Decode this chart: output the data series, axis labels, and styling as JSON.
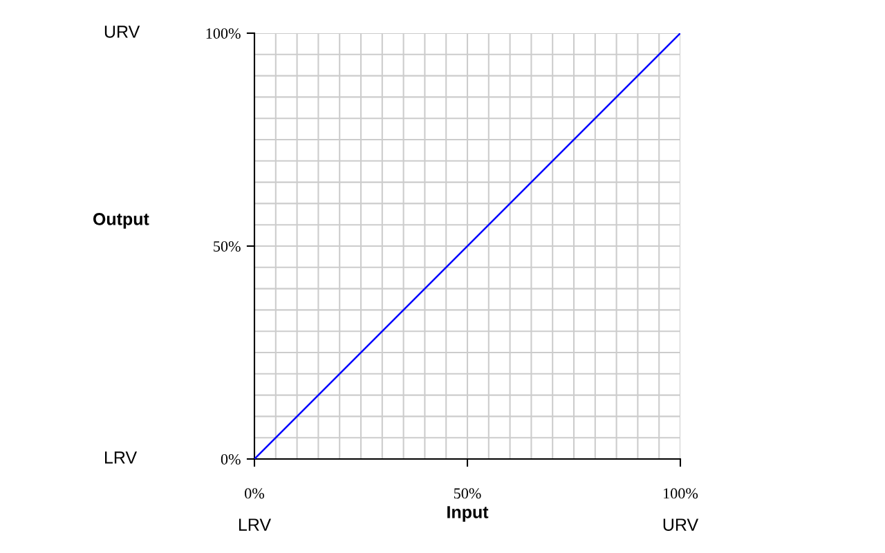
{
  "chart_data": {
    "type": "line",
    "xlabel": "Input",
    "ylabel": "Output",
    "x": [
      0,
      100
    ],
    "series": [
      {
        "color": "#0000ff",
        "values": [
          0,
          100
        ]
      }
    ],
    "xlim": [
      0,
      100
    ],
    "ylim": [
      0,
      100
    ],
    "xticks": [
      {
        "value": 0,
        "label": "0%"
      },
      {
        "value": 5,
        "label": null
      },
      {
        "value": 10,
        "label": null
      },
      {
        "value": 15,
        "label": null
      },
      {
        "value": 20,
        "label": null
      },
      {
        "value": 25,
        "label": null
      },
      {
        "value": 30,
        "label": null
      },
      {
        "value": 35,
        "label": null
      },
      {
        "value": 40,
        "label": null
      },
      {
        "value": 45,
        "label": null
      },
      {
        "value": 50,
        "label": "50%"
      },
      {
        "value": 55,
        "label": null
      },
      {
        "value": 60,
        "label": null
      },
      {
        "value": 65,
        "label": null
      },
      {
        "value": 70,
        "label": null
      },
      {
        "value": 75,
        "label": null
      },
      {
        "value": 80,
        "label": null
      },
      {
        "value": 85,
        "label": null
      },
      {
        "value": 90,
        "label": null
      },
      {
        "value": 95,
        "label": null
      },
      {
        "value": 100,
        "label": "100%"
      }
    ],
    "yticks": [
      {
        "value": 0,
        "label": "0%"
      },
      {
        "value": 5,
        "label": null
      },
      {
        "value": 10,
        "label": null
      },
      {
        "value": 15,
        "label": null
      },
      {
        "value": 20,
        "label": null
      },
      {
        "value": 25,
        "label": null
      },
      {
        "value": 30,
        "label": null
      },
      {
        "value": 35,
        "label": null
      },
      {
        "value": 40,
        "label": null
      },
      {
        "value": 45,
        "label": null
      },
      {
        "value": 50,
        "label": "50%"
      },
      {
        "value": 55,
        "label": null
      },
      {
        "value": 60,
        "label": null
      },
      {
        "value": 65,
        "label": null
      },
      {
        "value": 70,
        "label": null
      },
      {
        "value": 75,
        "label": null
      },
      {
        "value": 80,
        "label": null
      },
      {
        "value": 85,
        "label": null
      },
      {
        "value": 90,
        "label": null
      },
      {
        "value": 95,
        "label": null
      },
      {
        "value": 100,
        "label": "100%"
      }
    ],
    "grid": true,
    "annotations": [
      "LRV",
      "URV",
      "LRV",
      "URV"
    ]
  }
}
